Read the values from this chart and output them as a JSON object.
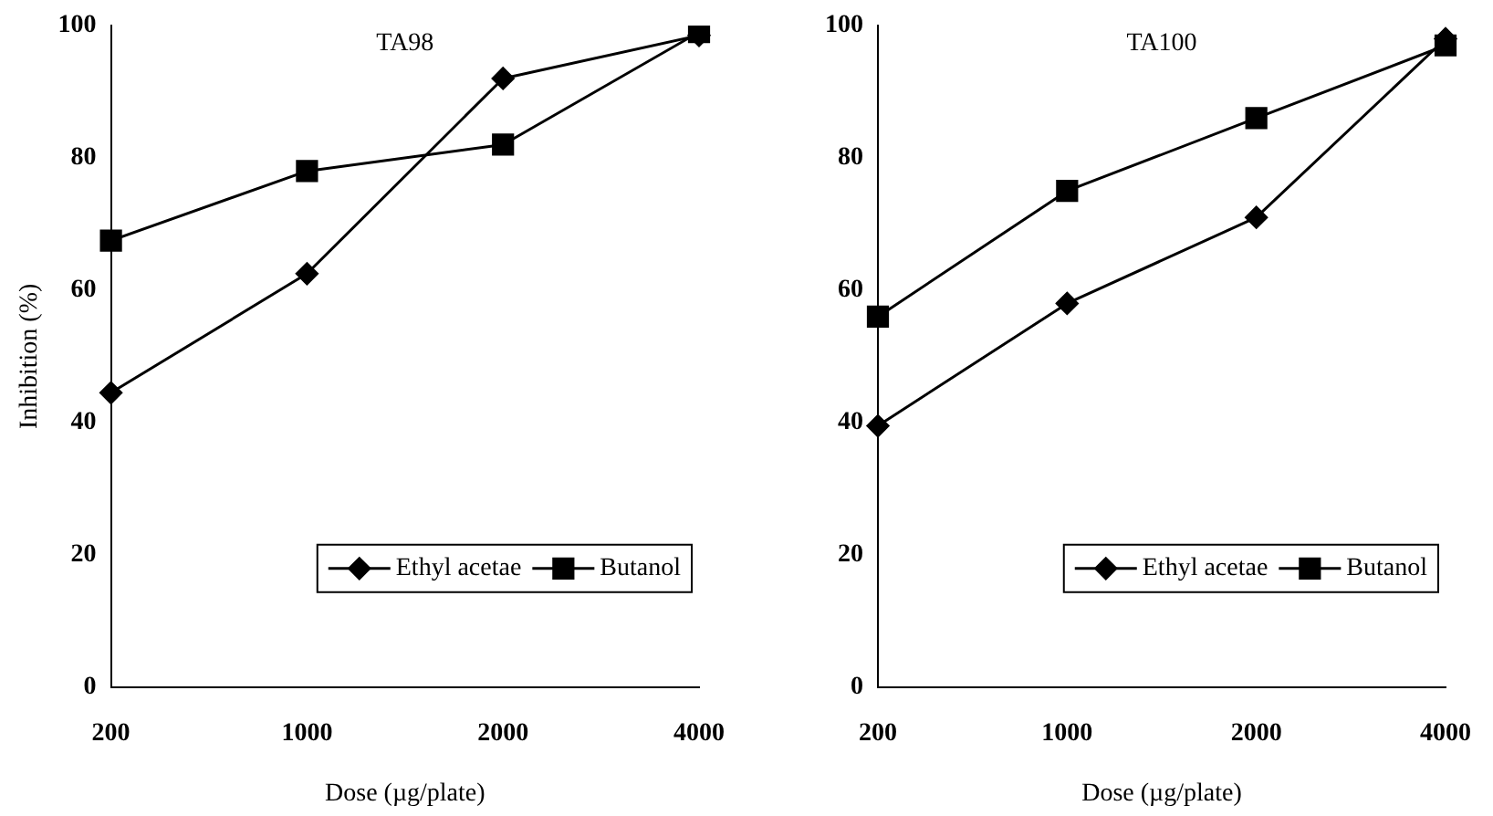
{
  "chart_data": [
    {
      "type": "line",
      "title": "TA98",
      "xlabel": "Dose (µg/plate)",
      "ylabel": "Inhibition (%)",
      "categories": [
        "200",
        "1000",
        "2000",
        "4000"
      ],
      "series": [
        {
          "name": "Ethyl acetae",
          "color": "#000000",
          "marker": "diamond",
          "values": [
            44.5,
            62.5,
            92,
            98.5
          ]
        },
        {
          "name": "Butanol",
          "color": "#000000",
          "marker": "square",
          "values": [
            67.5,
            78,
            82,
            99
          ]
        }
      ],
      "ylim": [
        0,
        100
      ],
      "yticks": [
        0,
        20,
        40,
        60,
        80,
        100
      ],
      "grid": false,
      "legend": "bottom right"
    },
    {
      "type": "line",
      "title": "TA100",
      "xlabel": "Dose (µg/plate)",
      "categories": [
        "200",
        "1000",
        "2000",
        "4000"
      ],
      "series": [
        {
          "name": "Ethyl acetae",
          "color": "#000000",
          "marker": "diamond",
          "values": [
            39.5,
            58,
            71,
            98
          ]
        },
        {
          "name": "Butanol",
          "color": "#000000",
          "marker": "square",
          "values": [
            56,
            75,
            86,
            97
          ]
        }
      ],
      "ylim": [
        0,
        100
      ],
      "yticks": [
        0,
        20,
        40,
        60,
        80,
        100
      ],
      "grid": false,
      "legend": "bottom right"
    }
  ]
}
